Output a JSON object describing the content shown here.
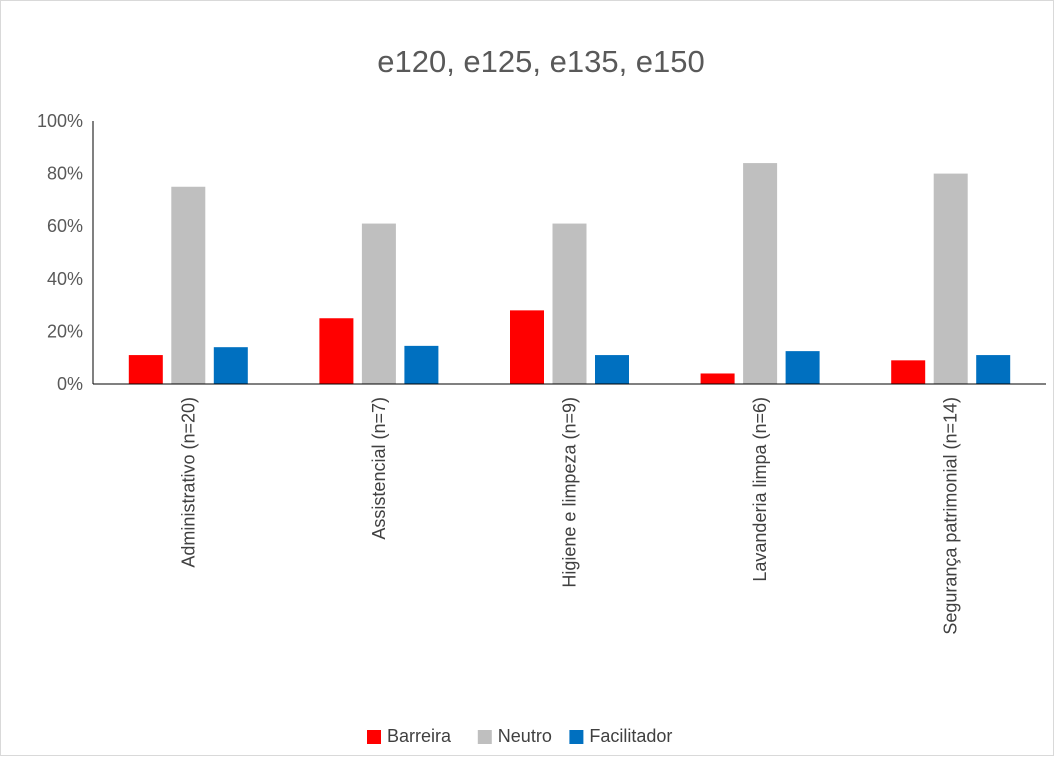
{
  "chart_data": {
    "type": "bar",
    "title": "e120, e125, e135, e150",
    "categories": [
      "Administrativo (n=20)",
      "Assistencial (n=7)",
      "Higiene e limpeza (n=9)",
      "Lavanderia limpa (n=6)",
      "Segurança patrimonial (n=14)"
    ],
    "series": [
      {
        "name": "Barreira",
        "color": "#ff0000",
        "values": [
          11,
          25,
          28,
          4,
          9
        ]
      },
      {
        "name": "Neutro",
        "color": "#bfbfbf",
        "values": [
          75,
          61,
          61,
          84,
          80
        ]
      },
      {
        "name": "Facilitador",
        "color": "#0070c0",
        "values": [
          14,
          14.5,
          11,
          12.5,
          11
        ]
      }
    ],
    "ylim": [
      0,
      100
    ],
    "yticks": [
      0,
      20,
      40,
      60,
      80,
      100
    ],
    "ytick_labels": [
      "0%",
      "20%",
      "40%",
      "60%",
      "80%",
      "100%"
    ],
    "xlabel": "",
    "ylabel": "",
    "grid": false,
    "legend_position": "bottom"
  }
}
